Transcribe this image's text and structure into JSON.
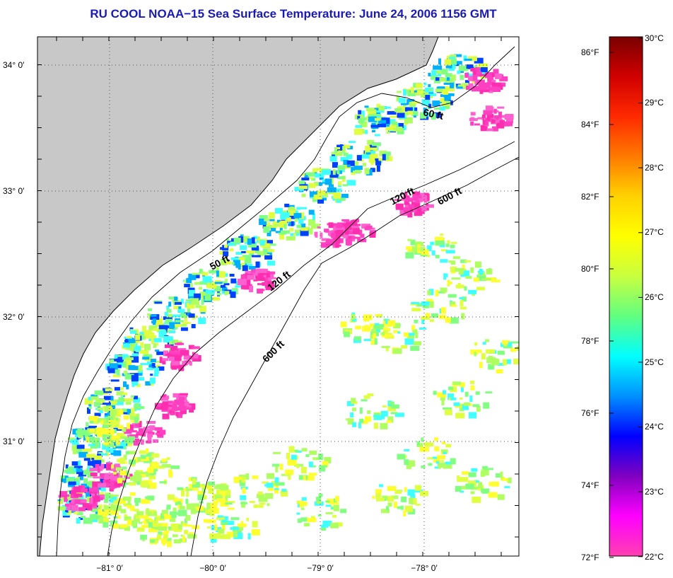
{
  "title": "RU COOL  NOAA−15  Sea Surface Temperature:  June 24, 2006 1156 GMT",
  "map": {
    "lat_labels": [
      "34° 0′",
      "33° 0′",
      "32° 0′",
      "31° 0′"
    ],
    "lon_labels": [
      "−81° 0′",
      "−80° 0′",
      "−79° 0′",
      "−78° 0′"
    ],
    "depth_labels": [
      "60 ft",
      "120 ft",
      "600 ft",
      "50 ft",
      "120 ft",
      "600 ft"
    ],
    "colors": {
      "land": "#c8c8c8",
      "ocean": "#ffffff",
      "grid": "#555555"
    }
  },
  "colorbar": {
    "fahrenheit_labels": [
      "86°F",
      "84°F",
      "82°F",
      "80°F",
      "78°F",
      "76°F",
      "74°F",
      "72°F"
    ],
    "celsius_labels": [
      "30°C",
      "29°C",
      "28°C",
      "27°C",
      "26°C",
      "25°C",
      "24°C",
      "23°C",
      "22°C"
    ],
    "stops": [
      "#7a0000",
      "#d00000",
      "#ff2a00",
      "#ff7a00",
      "#ffd200",
      "#ffff00",
      "#c8ff40",
      "#60ff80",
      "#00ffff",
      "#0090ff",
      "#0000ff",
      "#8000c0",
      "#ff00ff",
      "#ff40b0"
    ]
  }
}
